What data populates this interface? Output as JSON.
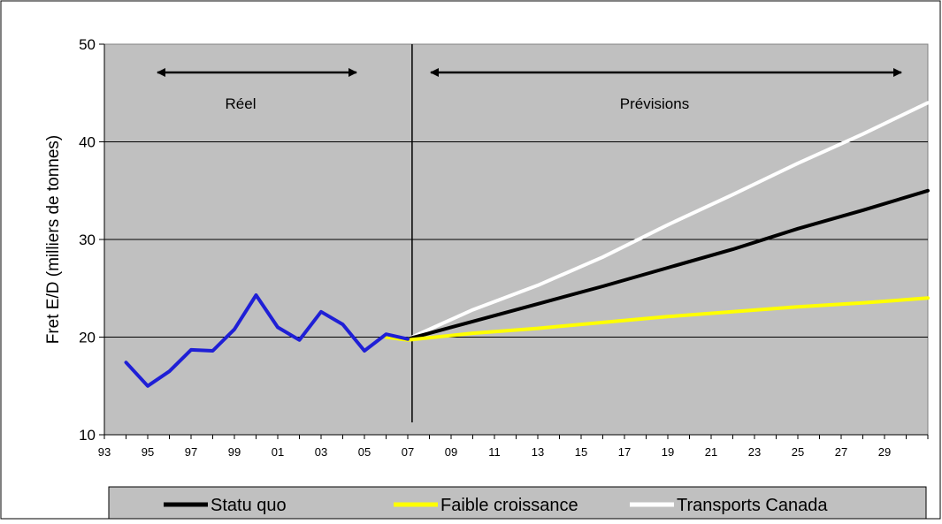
{
  "chart_data": {
    "type": "line",
    "title": "",
    "xlabel": "",
    "ylabel": "Fret E/D (milliers de tonnes)",
    "ylim": [
      10,
      50
    ],
    "yticks": [
      "10",
      "20",
      "30",
      "40",
      "50"
    ],
    "xlim": [
      1993,
      2031
    ],
    "xtick_labels": [
      "93",
      "95",
      "97",
      "99",
      "01",
      "03",
      "05",
      "07",
      "09",
      "11",
      "13",
      "15",
      "17",
      "19",
      "21",
      "23",
      "25",
      "27",
      "29"
    ],
    "grid": "horizontal",
    "legend_placement": "bottom",
    "annotations": {
      "real_label": "Réel",
      "forecast_label": "Prévisions"
    },
    "colors": {
      "plot_bg": "#c0c0c0",
      "actual": "#1f1fd6",
      "status_quo": "#000000",
      "low_growth": "#ffff00",
      "transports_canada": "#ffffff",
      "legend_bg": "#c0c0c0"
    },
    "actual": {
      "x": [
        1994,
        1995,
        1996,
        1997,
        1998,
        1999,
        2000,
        2001,
        2002,
        2003,
        2004,
        2005,
        2006,
        2007
      ],
      "values": [
        17.4,
        15.0,
        16.5,
        18.7,
        18.6,
        20.8,
        24.3,
        21.0,
        19.7,
        22.6,
        21.3,
        18.6,
        20.3,
        19.8
      ]
    },
    "series": [
      {
        "name": "Statu quo",
        "x": [
          2007,
          2010,
          2013,
          2016,
          2019,
          2022,
          2025,
          2028,
          2031
        ],
        "values": [
          19.8,
          21.6,
          23.4,
          25.2,
          27.1,
          29.0,
          31.1,
          33.0,
          35.0
        ]
      },
      {
        "name": "Faible croissance",
        "x": [
          2006,
          2007,
          2010,
          2013,
          2016,
          2019,
          2022,
          2025,
          2028,
          2031
        ],
        "values": [
          20.0,
          19.7,
          20.4,
          20.9,
          21.5,
          22.1,
          22.6,
          23.1,
          23.5,
          24.0
        ]
      },
      {
        "name": "Transports Canada",
        "x": [
          2007,
          2010,
          2013,
          2016,
          2019,
          2022,
          2025,
          2028,
          2031
        ],
        "values": [
          19.8,
          22.8,
          25.3,
          28.2,
          31.5,
          34.6,
          37.8,
          40.8,
          44.0
        ]
      }
    ]
  }
}
